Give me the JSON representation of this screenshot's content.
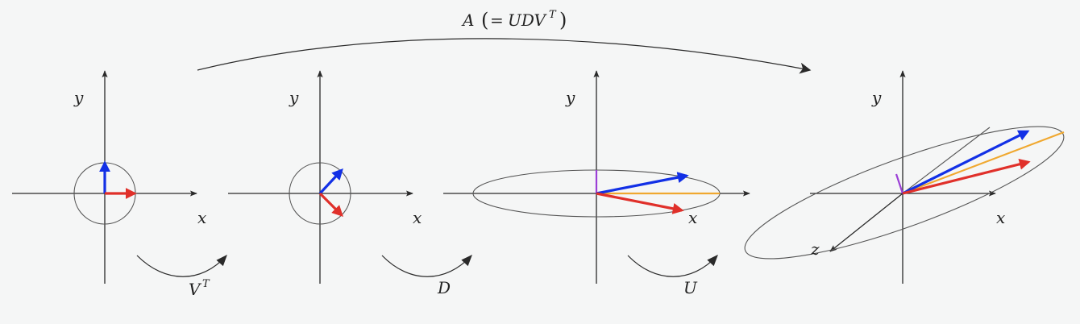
{
  "title": {
    "prefix": "A",
    "open": "(",
    "equals": "= ",
    "body": "UDV",
    "sup": "T",
    "close": ")"
  },
  "panels": [
    {
      "x_label": "x",
      "y_label": "y"
    },
    {
      "x_label": "x",
      "y_label": "y"
    },
    {
      "x_label": "x",
      "y_label": "y"
    },
    {
      "x_label": "x",
      "y_label": "y",
      "z_label": "z"
    }
  ],
  "transforms": [
    {
      "label": "V",
      "sup": "T"
    },
    {
      "label": "D",
      "sup": ""
    },
    {
      "label": "U",
      "sup": ""
    }
  ],
  "colors": {
    "blue": "#1230e6",
    "red": "#e0302a",
    "orange": "#f0a830",
    "purple": "#9b3fd6",
    "axis": "#2a2a2a"
  }
}
